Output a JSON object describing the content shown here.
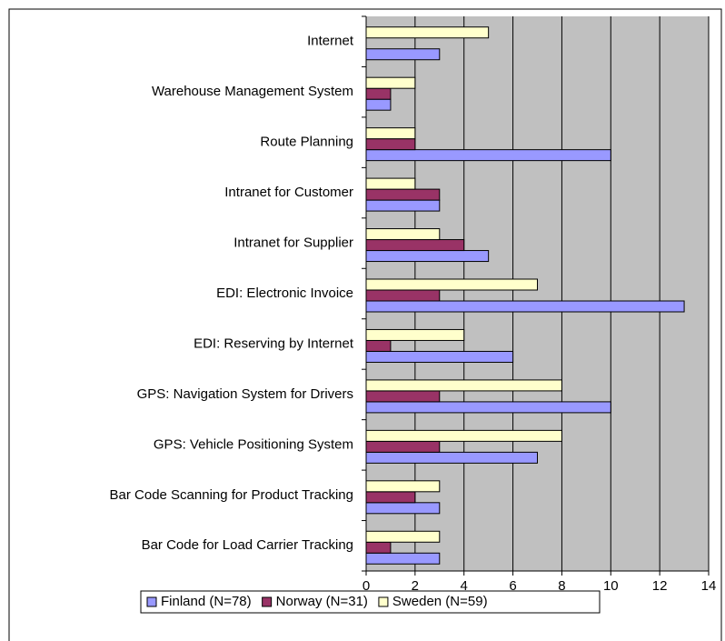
{
  "chart_data": {
    "type": "hbar",
    "categories": [
      "Internet",
      "Warehouse Management System",
      "Route Planning",
      "Intranet for Customer",
      "Intranet for Supplier",
      "EDI: Electronic Invoice",
      "EDI: Reserving by Internet",
      "GPS: Navigation System for Drivers",
      "GPS: Vehicle Positioning System",
      "Bar Code Scanning for Product Tracking",
      "Bar Code for Load Carrier Tracking"
    ],
    "series": [
      {
        "name": "Finland (N=78)",
        "color": "#9999ff",
        "values": [
          3,
          1,
          10,
          3,
          5,
          13,
          6,
          10,
          7,
          3,
          3
        ]
      },
      {
        "name": "Norway (N=31)",
        "color": "#993366",
        "values": [
          0,
          1,
          2,
          3,
          4,
          3,
          1,
          3,
          3,
          2,
          1
        ]
      },
      {
        "name": "Sweden (N=59)",
        "color": "#ffffcc",
        "values": [
          5,
          2,
          2,
          2,
          3,
          7,
          4,
          8,
          8,
          3,
          3
        ]
      }
    ],
    "xlim": [
      0,
      14
    ],
    "xticks": [
      0,
      2,
      4,
      6,
      8,
      10,
      12,
      14
    ],
    "grid": true,
    "legend": "bottom"
  }
}
